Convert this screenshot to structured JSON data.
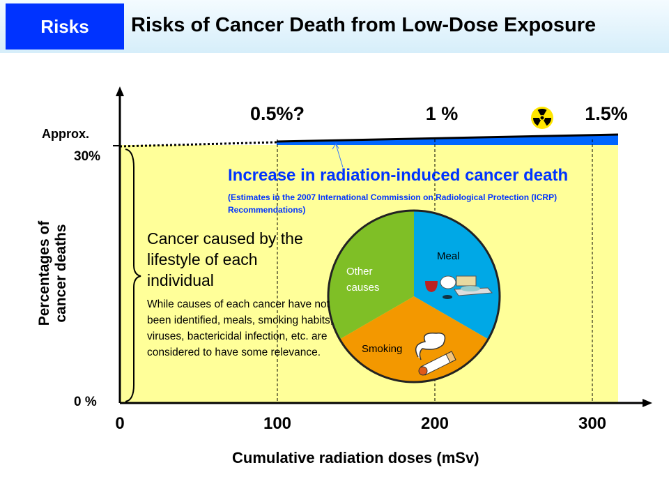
{
  "header": {
    "tag": "Risks",
    "title": "Risks of Cancer Death from Low-Dose Exposure"
  },
  "colors": {
    "header_tag": "#0033ff",
    "baseline_area": "#ffff99",
    "radiation_band": "#0066ff",
    "annotation_text": "#0033ff"
  },
  "chart_data": {
    "type": "area",
    "xlabel": "Cumulative radiation doses (mSv)",
    "ylabel": "Percentages of cancer deaths",
    "x_ticks": [
      "0",
      "100",
      "200",
      "300"
    ],
    "y_ticks": [
      "0 %",
      "30%"
    ],
    "y_tick_prefix": "Approx.",
    "xlim": [
      0,
      315
    ],
    "baseline_percent": 30,
    "increase_annotations": [
      {
        "x": 100,
        "label": "0.5%?"
      },
      {
        "x": 200,
        "label": "1 %"
      },
      {
        "x": 300,
        "label": "1.5%"
      }
    ],
    "radiation_icon": "radiation-trefoil-icon",
    "band_label": "Increase in radiation-induced cancer death",
    "band_note": "(Estimates in the 2007 International Commission on Radiological Protection (ICRP) Recommendations)",
    "pie": {
      "slices": [
        {
          "label": "Meal",
          "value": 1,
          "color": "#00a8e6"
        },
        {
          "label": "Smoking",
          "value": 1,
          "color": "#f39800"
        },
        {
          "label": "Other causes",
          "value": 1,
          "color": "#7fbf26"
        }
      ]
    },
    "lifestyle_heading": "Cancer caused by the lifestyle of each individual",
    "lifestyle_text": "While causes of each cancer have not been identified, meals, smoking habits, viruses, bactericidal infection, etc. are considered to have some relevance."
  }
}
